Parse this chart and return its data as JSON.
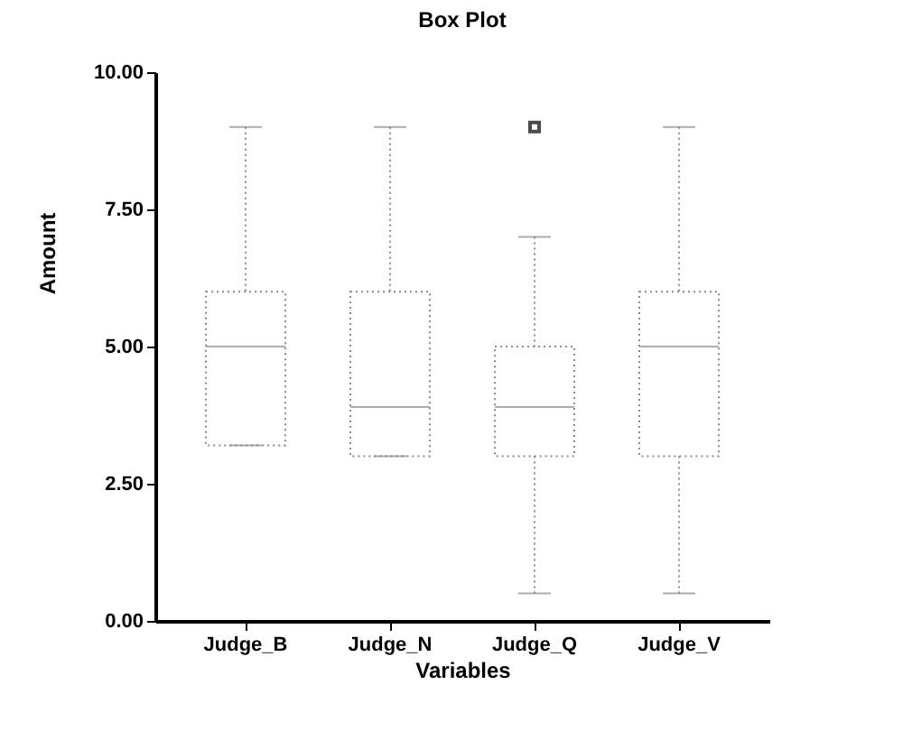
{
  "chart_data": {
    "type": "box",
    "title": "Box Plot",
    "xlabel": "Variables",
    "ylabel": "Amount",
    "categories": [
      "Judge_B",
      "Judge_N",
      "Judge_Q",
      "Judge_V"
    ],
    "boxes": [
      {
        "low": 3.2,
        "q1": 3.2,
        "median": 5,
        "q3": 6,
        "high": 9
      },
      {
        "low": 3,
        "q1": 3,
        "median": 3.9,
        "q3": 6,
        "high": 9
      },
      {
        "low": 0.5,
        "q1": 3,
        "median": 3.9,
        "q3": 5,
        "high": 7,
        "outliers": [
          9
        ]
      },
      {
        "low": 0.5,
        "q1": 3,
        "median": 5,
        "q3": 6,
        "high": 9
      }
    ],
    "color": "#8a8a8a",
    "ylim": [
      0,
      10
    ],
    "yticks": [
      {
        "value": 0,
        "label": "0.00"
      },
      {
        "value": 2.5,
        "label": "2.50"
      },
      {
        "value": 5,
        "label": "5.00"
      },
      {
        "value": 7.5,
        "label": "7.50"
      },
      {
        "value": 10,
        "label": "10.00"
      }
    ],
    "grid": false,
    "line_style": "dotted"
  }
}
